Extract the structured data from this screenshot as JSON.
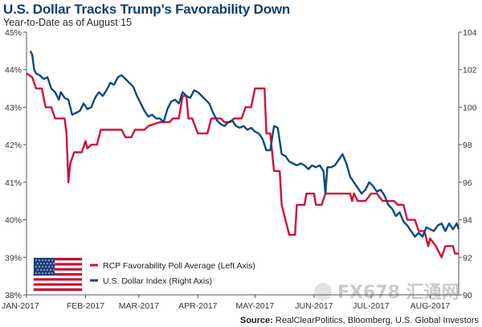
{
  "header": {
    "title": "U.S. Dollar Tracks Trump’s Favorability Down",
    "subtitle": "Year-to-Date as of August 15"
  },
  "source": {
    "label": "Source:",
    "text": "RealClearPolitics, Bloomberg, U.S. Global Investors"
  },
  "watermark": {
    "text": "FX678 汇通网"
  },
  "colors": {
    "favorability": "#d0103a",
    "dollar": "#0d4a7c",
    "axis": "#555555"
  },
  "chart_data": {
    "type": "line",
    "title": "U.S. Dollar Tracks Trump’s Favorability Down",
    "subtitle": "Year-to-Date as of August 15",
    "x_tick_labels": [
      "JAN-2017",
      "FEB-2017",
      "MAR-2017",
      "APR-2017",
      "MAY-2017",
      "JUN-2017",
      "JUL-2017",
      "AUG-2017"
    ],
    "x_range_days": [
      0,
      227
    ],
    "y_left": {
      "range": [
        38,
        45
      ],
      "tick_labels": [
        "38%",
        "39%",
        "40%",
        "41%",
        "42%",
        "43%",
        "44%",
        "45%"
      ],
      "unit": "%"
    },
    "y_right": {
      "range": [
        90,
        104
      ],
      "tick_labels": [
        "90",
        "92",
        "94",
        "96",
        "98",
        "100",
        "102",
        "104"
      ]
    },
    "legend_position": "bottom-left",
    "legend_icon": "us-flag",
    "grid": false,
    "series": [
      {
        "name": "RCP Favorability Poll Average (Left Axis)",
        "axis": "left",
        "color": "#d0103a",
        "points": [
          [
            0,
            43.9
          ],
          [
            3,
            43.8
          ],
          [
            5,
            43.5
          ],
          [
            8,
            43.5
          ],
          [
            10,
            43.0
          ],
          [
            13,
            43.0
          ],
          [
            15,
            42.7
          ],
          [
            20,
            42.7
          ],
          [
            21,
            42.3
          ],
          [
            22,
            41.0
          ],
          [
            23,
            41.5
          ],
          [
            25,
            41.8
          ],
          [
            29,
            41.8
          ],
          [
            31,
            42.1
          ],
          [
            32,
            41.9
          ],
          [
            34,
            42.0
          ],
          [
            37,
            42.0
          ],
          [
            39,
            42.4
          ],
          [
            44,
            42.4
          ],
          [
            50,
            42.4
          ],
          [
            52,
            42.2
          ],
          [
            55,
            42.2
          ],
          [
            57,
            42.4
          ],
          [
            62,
            42.4
          ],
          [
            64,
            42.5
          ],
          [
            70,
            42.6
          ],
          [
            75,
            42.6
          ],
          [
            77,
            42.7
          ],
          [
            80,
            42.7
          ],
          [
            82,
            43.3
          ],
          [
            84,
            43.3
          ],
          [
            85,
            42.7
          ],
          [
            87,
            42.7
          ],
          [
            90,
            42.3
          ],
          [
            95,
            42.3
          ],
          [
            97,
            42.7
          ],
          [
            102,
            42.7
          ],
          [
            104,
            42.6
          ],
          [
            107,
            42.6
          ],
          [
            109,
            42.7
          ],
          [
            113,
            42.7
          ],
          [
            115,
            43.0
          ],
          [
            118,
            43.0
          ],
          [
            120,
            43.5
          ],
          [
            125,
            43.5
          ],
          [
            126,
            42.3
          ],
          [
            128,
            42.3
          ],
          [
            130,
            41.3
          ],
          [
            133,
            41.3
          ],
          [
            134,
            40.4
          ],
          [
            136,
            40.0
          ],
          [
            138,
            39.6
          ],
          [
            141,
            39.6
          ],
          [
            142,
            40.4
          ],
          [
            146,
            40.4
          ],
          [
            147,
            40.7
          ],
          [
            151,
            40.7
          ],
          [
            152,
            40.4
          ],
          [
            155,
            40.4
          ],
          [
            157,
            40.7
          ],
          [
            170,
            40.7
          ],
          [
            171,
            40.5
          ],
          [
            172,
            40.7
          ],
          [
            174,
            40.5
          ],
          [
            178,
            40.5
          ],
          [
            181,
            40.7
          ],
          [
            184,
            40.7
          ],
          [
            187,
            40.5
          ],
          [
            193,
            40.5
          ],
          [
            195,
            40.4
          ],
          [
            198,
            40.4
          ],
          [
            200,
            40.0
          ],
          [
            204,
            40.0
          ],
          [
            206,
            39.7
          ],
          [
            209,
            39.7
          ],
          [
            211,
            39.3
          ],
          [
            212,
            39.5
          ],
          [
            215,
            39.3
          ],
          [
            218,
            39.0
          ],
          [
            220,
            39.3
          ],
          [
            224,
            39.3
          ],
          [
            225,
            39.1
          ],
          [
            227,
            39.1
          ]
        ]
      },
      {
        "name": "U.S. Dollar Index (Right Axis)",
        "axis": "right",
        "color": "#0d4a7c",
        "points": [
          [
            2,
            103.0
          ],
          [
            3,
            102.8
          ],
          [
            4,
            102.0
          ],
          [
            5,
            101.8
          ],
          [
            7,
            101.7
          ],
          [
            9,
            101.5
          ],
          [
            11,
            101.6
          ],
          [
            13,
            101.0
          ],
          [
            15,
            100.8
          ],
          [
            17,
            100.4
          ],
          [
            18,
            100.8
          ],
          [
            20,
            100.5
          ],
          [
            22,
            100.4
          ],
          [
            24,
            99.6
          ],
          [
            26,
            99.7
          ],
          [
            28,
            99.8
          ],
          [
            30,
            100.2
          ],
          [
            32,
            99.9
          ],
          [
            34,
            100.0
          ],
          [
            36,
            100.5
          ],
          [
            38,
            100.8
          ],
          [
            40,
            100.6
          ],
          [
            42,
            100.9
          ],
          [
            44,
            101.3
          ],
          [
            46,
            101.2
          ],
          [
            48,
            101.6
          ],
          [
            50,
            101.7
          ],
          [
            52,
            101.5
          ],
          [
            54,
            101.3
          ],
          [
            56,
            101.1
          ],
          [
            58,
            100.6
          ],
          [
            60,
            100.2
          ],
          [
            62,
            99.8
          ],
          [
            64,
            99.5
          ],
          [
            66,
            99.6
          ],
          [
            68,
            99.4
          ],
          [
            70,
            99.4
          ],
          [
            72,
            99.2
          ],
          [
            74,
            99.9
          ],
          [
            76,
            100.3
          ],
          [
            78,
            100.4
          ],
          [
            80,
            100.2
          ],
          [
            82,
            100.8
          ],
          [
            84,
            100.6
          ],
          [
            86,
            100.5
          ],
          [
            88,
            100.9
          ],
          [
            90,
            100.8
          ],
          [
            92,
            100.6
          ],
          [
            94,
            100.4
          ],
          [
            96,
            100.2
          ],
          [
            98,
            99.7
          ],
          [
            100,
            99.3
          ],
          [
            102,
            99.1
          ],
          [
            104,
            99.0
          ],
          [
            106,
            99.2
          ],
          [
            108,
            99.3
          ],
          [
            110,
            99.0
          ],
          [
            112,
            98.9
          ],
          [
            114,
            99.0
          ],
          [
            116,
            98.8
          ],
          [
            118,
            98.9
          ],
          [
            120,
            98.7
          ],
          [
            122,
            98.6
          ],
          [
            124,
            98.3
          ],
          [
            126,
            97.7
          ],
          [
            128,
            97.7
          ],
          [
            130,
            99.0
          ],
          [
            132,
            98.9
          ],
          [
            134,
            97.5
          ],
          [
            136,
            97.4
          ],
          [
            138,
            97.1
          ],
          [
            140,
            97.0
          ],
          [
            142,
            96.9
          ],
          [
            144,
            97.0
          ],
          [
            146,
            96.9
          ],
          [
            148,
            96.7
          ],
          [
            150,
            96.9
          ],
          [
            152,
            96.8
          ],
          [
            154,
            96.9
          ],
          [
            156,
            96.6
          ],
          [
            157,
            95.4
          ],
          [
            158,
            96.8
          ],
          [
            160,
            96.8
          ],
          [
            162,
            96.9
          ],
          [
            164,
            97.2
          ],
          [
            166,
            97.5
          ],
          [
            168,
            97.0
          ],
          [
            170,
            96.3
          ],
          [
            172,
            96.0
          ],
          [
            174,
            95.7
          ],
          [
            176,
            95.4
          ],
          [
            178,
            95.6
          ],
          [
            180,
            96.0
          ],
          [
            182,
            95.8
          ],
          [
            184,
            95.5
          ],
          [
            186,
            95.6
          ],
          [
            188,
            95.3
          ],
          [
            190,
            94.8
          ],
          [
            192,
            94.6
          ],
          [
            194,
            94.2
          ],
          [
            196,
            94.4
          ],
          [
            198,
            93.9
          ],
          [
            200,
            93.7
          ],
          [
            202,
            93.4
          ],
          [
            204,
            93.1
          ],
          [
            206,
            93.3
          ],
          [
            208,
            93.1
          ],
          [
            210,
            93.6
          ],
          [
            212,
            93.5
          ],
          [
            214,
            93.4
          ],
          [
            216,
            93.7
          ],
          [
            218,
            93.8
          ],
          [
            220,
            93.4
          ],
          [
            222,
            93.8
          ],
          [
            224,
            93.5
          ],
          [
            226,
            93.8
          ],
          [
            227,
            93.5
          ]
        ]
      }
    ]
  }
}
